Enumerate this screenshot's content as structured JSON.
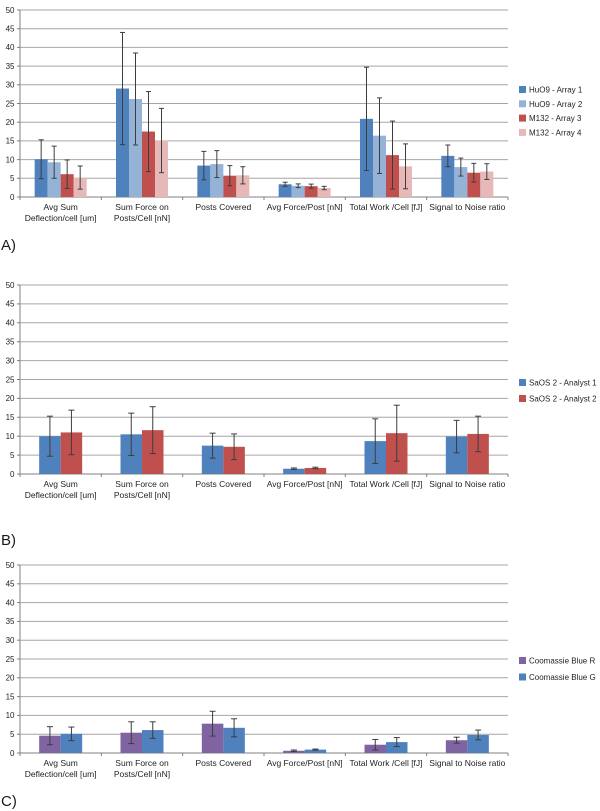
{
  "panels": [
    {
      "label": "A)"
    },
    {
      "label": "B)"
    },
    {
      "label": "C)"
    }
  ],
  "chart_data": [
    {
      "type": "bar",
      "panel": "A",
      "title": "",
      "xlabel": "",
      "ylabel": "",
      "ylim": [
        0,
        50
      ],
      "ytick_step": 5,
      "grid": true,
      "legend_position": "right",
      "error_bars": true,
      "categories": [
        "Avg Sum\nDeflection/cell [um]",
        "Sum Force on\nPosts/Cell [nN]",
        "Posts Covered",
        "Avg Force/Post [nN]",
        "Total Work /Cell [fJ]",
        "Signal to Noise ratio"
      ],
      "series": [
        {
          "name": "HuO9 - Array 1",
          "color": "#4F81BD",
          "values": [
            10.1,
            29.0,
            8.4,
            3.4,
            20.9,
            11.0
          ],
          "errors": [
            5.2,
            15.0,
            3.8,
            0.55,
            13.8,
            2.9
          ]
        },
        {
          "name": "HuO9 - Array 2",
          "color": "#95B3D7",
          "values": [
            9.3,
            26.2,
            8.8,
            3.0,
            16.4,
            8.0
          ],
          "errors": [
            4.3,
            12.3,
            3.6,
            0.5,
            10.1,
            2.4
          ]
        },
        {
          "name": "M132 - Array 3",
          "color": "#C0504D",
          "values": [
            6.1,
            17.5,
            5.7,
            2.9,
            11.2,
            6.5
          ],
          "errors": [
            3.8,
            10.7,
            2.7,
            0.55,
            9.1,
            2.5
          ]
        },
        {
          "name": "M132 - Array 4",
          "color": "#E6B9B8",
          "values": [
            5.2,
            15.1,
            5.8,
            2.4,
            8.2,
            6.8
          ],
          "errors": [
            3.1,
            8.6,
            2.3,
            0.45,
            6.0,
            2.1
          ]
        }
      ]
    },
    {
      "type": "bar",
      "panel": "B",
      "title": "",
      "xlabel": "",
      "ylabel": "",
      "ylim": [
        0,
        50
      ],
      "ytick_step": 5,
      "grid": true,
      "legend_position": "right",
      "error_bars": true,
      "categories": [
        "Avg Sum\nDeflection/cell [um]",
        "Sum Force on\nPosts/Cell [nN]",
        "Posts Covered",
        "Avg Force/Post [nN]",
        "Total Work /Cell [fJ]",
        "Signal to Noise ratio"
      ],
      "series": [
        {
          "name": "SaOS 2 - Analyst 1",
          "color": "#4F81BD",
          "values": [
            10.0,
            10.5,
            7.5,
            1.4,
            8.7,
            9.9
          ],
          "errors": [
            5.3,
            5.6,
            3.3,
            0.2,
            5.9,
            4.3
          ]
        },
        {
          "name": "SaOS 2 - Analyst 2",
          "color": "#C0504D",
          "values": [
            11.0,
            11.6,
            7.2,
            1.6,
            10.8,
            10.6
          ],
          "errors": [
            5.9,
            6.2,
            3.4,
            0.2,
            7.4,
            4.7
          ]
        }
      ]
    },
    {
      "type": "bar",
      "panel": "C",
      "title": "",
      "xlabel": "",
      "ylabel": "",
      "ylim": [
        0,
        50
      ],
      "ytick_step": 5,
      "grid": true,
      "legend_position": "right",
      "error_bars": true,
      "categories": [
        "Avg Sum\nDeflection/cell [um]",
        "Sum Force on\nPosts/Cell [nN]",
        "Posts Covered",
        "Avg Force/Post [nN]",
        "Total Work /Cell [fJ]",
        "Signal to Noise ratio"
      ],
      "series": [
        {
          "name": "Coomassie Blue R",
          "color": "#8064A2",
          "values": [
            4.6,
            5.4,
            7.8,
            0.6,
            2.2,
            3.4
          ],
          "errors": [
            2.4,
            2.9,
            3.3,
            0.2,
            1.4,
            0.8
          ]
        },
        {
          "name": "Coomassie Blue G",
          "color": "#4F81BD",
          "values": [
            5.1,
            6.1,
            6.7,
            0.9,
            2.9,
            4.8
          ],
          "errors": [
            1.8,
            2.2,
            2.4,
            0.15,
            1.2,
            1.3
          ]
        }
      ]
    }
  ],
  "style": {
    "gridline_color": "#A6A6A6",
    "axis_color": "#808080",
    "error_bar_color": "#3d3d3d",
    "text_color": "#1f1f1f"
  }
}
